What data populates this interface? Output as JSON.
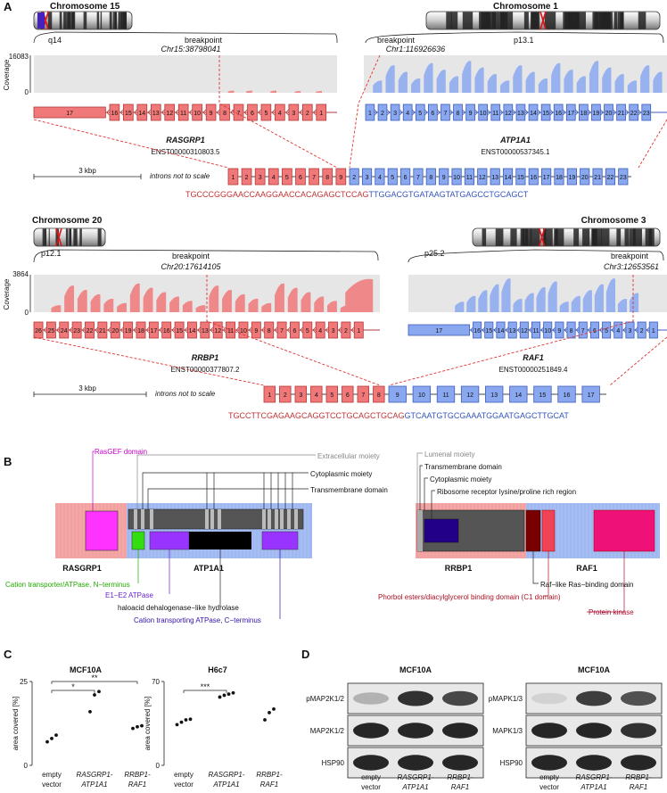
{
  "panel_a": {
    "label": "A",
    "fusion1": {
      "left": {
        "chromosome": "Chromosome 15",
        "band": "q14",
        "breakpoint_label": "breakpoint",
        "breakpoint": "Chr15:38798041",
        "gene": "RASGRP1",
        "transcript": "ENST00000310803.5",
        "exons": [
          "17",
          "16",
          "15",
          "14",
          "13",
          "12",
          "11",
          "10",
          "9",
          "8",
          "7",
          "6",
          "5",
          "4",
          "3",
          "2",
          "1"
        ]
      },
      "right": {
        "chromosome": "Chromosome 1",
        "band": "p13.1",
        "breakpoint_label": "breakpoint",
        "breakpoint": "Chr1:116926636",
        "gene": "ATP1A1",
        "transcript": "ENST00000537345.1",
        "exons": [
          "1",
          "2",
          "3",
          "4",
          "5",
          "6",
          "7",
          "8",
          "9",
          "10",
          "11",
          "12",
          "13",
          "14",
          "15",
          "16",
          "17",
          "18",
          "19",
          "20",
          "21",
          "22",
          "23"
        ]
      },
      "coverage_label": "Coverage",
      "coverage_max": "16083",
      "coverage_min": "0",
      "scale_label": "3 kbp",
      "scale_note": "introns not to scale",
      "fusion_exons_left": [
        "1",
        "2",
        "3",
        "4",
        "5",
        "6",
        "7",
        "8",
        "9"
      ],
      "fusion_exons_right": [
        "2",
        "3",
        "4",
        "5",
        "6",
        "7",
        "8",
        "9",
        "10",
        "11",
        "12",
        "13",
        "14",
        "15",
        "16",
        "17",
        "18",
        "19",
        "20",
        "21",
        "22",
        "23"
      ],
      "seq_left": "TGCCCGGGAACCAAGGAACCACAGAGCTCCAG",
      "seq_right": "TTGGACGTGATAAGTATGAGCCTGCAGCT"
    },
    "fusion2": {
      "left": {
        "chromosome": "Chromosome 20",
        "band": "p12.1",
        "breakpoint_label": "breakpoint",
        "breakpoint": "Chr20:17614105",
        "gene": "RRBP1",
        "transcript": "ENST00000377807.2",
        "exons": [
          "26",
          "25",
          "24",
          "23",
          "22",
          "21",
          "20",
          "19",
          "18",
          "17",
          "16",
          "15",
          "14",
          "13",
          "12",
          "11",
          "10",
          "9",
          "8",
          "7",
          "6",
          "5",
          "4",
          "3",
          "2",
          "1"
        ]
      },
      "right": {
        "chromosome": "Chromosome 3",
        "band": "p25.2",
        "breakpoint_label": "breakpoint",
        "breakpoint": "Chr3:12653561",
        "gene": "RAF1",
        "transcript": "ENST00000251849.4",
        "exons": [
          "17",
          "16",
          "15",
          "14",
          "13",
          "12",
          "11",
          "10",
          "9",
          "8",
          "7",
          "6",
          "5",
          "4",
          "3",
          "2",
          "1"
        ]
      },
      "coverage_label": "Coverage",
      "coverage_max": "3864",
      "coverage_min": "0",
      "scale_label": "3 kbp",
      "scale_note": "introns not to scale",
      "fusion_exons_left": [
        "1",
        "2",
        "3",
        "4",
        "5",
        "6",
        "7",
        "8"
      ],
      "fusion_exons_right": [
        "9",
        "10",
        "11",
        "12",
        "13",
        "14",
        "15",
        "16",
        "17"
      ],
      "seq_left": "TGCCTTCGAGAAGCAGGTCCTGCAGCTGCAG",
      "seq_right": "GTCAATGTGCGAAATGGAATGAGCTTGCAT"
    }
  },
  "panel_b": {
    "label": "B",
    "left": {
      "gene_left": "RASGRP1",
      "gene_right": "ATP1A1",
      "labels": {
        "rasgef": "RasGEF domain",
        "extracellular": "Extracellular moiety",
        "cytoplasmic": "Cytoplasmic moiety",
        "transmembrane": "Transmembrane domain",
        "cation_n": "Cation transporter/ATPase, N−terminus",
        "e1e2": "E1−E2 ATPase",
        "haloacid": "haloacid dehalogenase−like hydrolase",
        "cation_c": "Cation transporting ATPase, C−terminus"
      }
    },
    "right": {
      "gene_left": "RRBP1",
      "gene_right": "RAF1",
      "labels": {
        "lumenal": "Lumenal moiety",
        "transmembrane": "Transmembrane domain",
        "cytoplasmic": "Cytoplasmic moiety",
        "ribosome": "Ribosome receptor lysine/proline rich region",
        "raf_like": "Raf−like Ras−binding domain",
        "c1": "Phorbol esters/diacylglycerol binding domain (C1 domain)",
        "kinase": "Protein kinase"
      }
    },
    "colors": {
      "rasgef": "#ff33ff",
      "cation_n": "#33dd11",
      "e1e2": "#9933ff",
      "haloacid": "#000000",
      "cation_c": "#9933ff",
      "ribosome": "#220088",
      "raf_like": "#7a0000",
      "c1": "#ee4455",
      "kinase": "#ee1177"
    }
  },
  "panel_c": {
    "label": "C",
    "charts": [
      {
        "title": "MCF10A",
        "ylabel": "area covered [%]",
        "yticks": [
          "0",
          "25"
        ],
        "ylim": [
          0,
          25
        ],
        "groups": [
          {
            "label_line1": "empty",
            "label_line2": "vector",
            "italic": false,
            "values": [
              7,
              8,
              9
            ]
          },
          {
            "label_line1": "RASGRP1-",
            "label_line2": "ATP1A1",
            "italic": true,
            "values": [
              16,
              21,
              22
            ]
          },
          {
            "label_line1": "RRBP1-",
            "label_line2": "RAF1",
            "italic": true,
            "values": [
              11,
              11.5,
              11.8
            ]
          }
        ],
        "brackets": [
          {
            "from": 0,
            "to": 1,
            "label": "*"
          },
          {
            "from": 0,
            "to": 2,
            "label": "**"
          }
        ]
      },
      {
        "title": "H6c7",
        "ylabel": "area covered [%]",
        "yticks": [
          "0",
          "70"
        ],
        "ylim": [
          0,
          70
        ],
        "groups": [
          {
            "label_line1": "empty",
            "label_line2": "vector",
            "italic": false,
            "values": [
              34,
              36,
              38,
              38.5
            ]
          },
          {
            "label_line1": "RASGRP1-",
            "label_line2": "ATP1A1",
            "italic": true,
            "values": [
              57,
              58.5,
              59.5,
              60.5
            ]
          },
          {
            "label_line1": "RRBP1-",
            "label_line2": "RAF1",
            "italic": true,
            "values": [
              38,
              44,
              47
            ]
          }
        ],
        "brackets": [
          {
            "from": 0,
            "to": 1,
            "label": "***"
          }
        ]
      }
    ]
  },
  "panel_d": {
    "label": "D",
    "blots": [
      {
        "title": "MCF10A",
        "rows": [
          "pMAP2K1/2",
          "MAP2K1/2",
          "HSP90"
        ],
        "lanes": [
          {
            "line1": "empty",
            "line2": "vector",
            "italic": false
          },
          {
            "line1": "RASGRP1-",
            "line2": "ATP1A1",
            "italic": true
          },
          {
            "line1": "RRBP1-",
            "line2": "RAF1",
            "italic": true
          }
        ]
      },
      {
        "title": "MCF10A",
        "rows": [
          "pMAPK1/3",
          "MAPK1/3",
          "HSP90"
        ],
        "lanes": [
          {
            "line1": "empty",
            "line2": "vector",
            "italic": false
          },
          {
            "line1": "RASGRP1-",
            "line2": "ATP1A1",
            "italic": true
          },
          {
            "line1": "RRBP1-",
            "line2": "RAF1",
            "italic": true
          }
        ]
      }
    ]
  }
}
